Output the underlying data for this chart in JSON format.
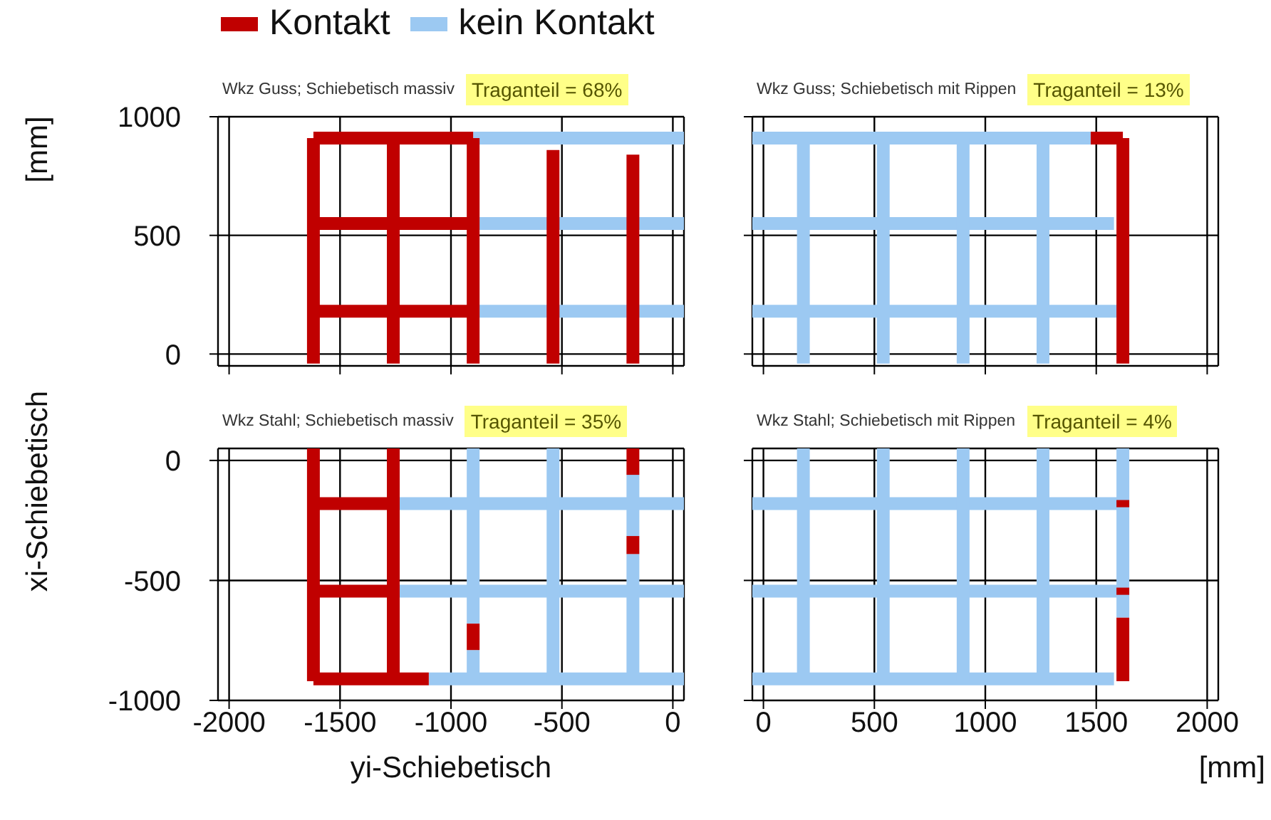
{
  "chart_data": [
    {
      "type": "line",
      "title": "Wkz Guss; Schiebetisch massiv",
      "annotations": [
        "Traganteil = 68%"
      ],
      "ylabel": "[mm]",
      "legend": "top",
      "grid": true,
      "tick_labels": "y",
      "xlim": [
        -2050,
        50
      ],
      "ylim": [
        -50,
        1000
      ],
      "xticks": [
        -2000,
        -1500,
        -1000,
        -500,
        0
      ],
      "yticks": [
        0,
        500,
        1000
      ],
      "series": [
        {
          "name": "kein Kontakt",
          "color": "#9cc9f2",
          "x": [
            -900,
            50
          ],
          "values": [
            910,
            910
          ]
        },
        {
          "color": "#9cc9f2",
          "x": [
            -900,
            50
          ],
          "values": [
            550,
            550
          ]
        },
        {
          "color": "#9cc9f2",
          "x": [
            -900,
            50
          ],
          "values": [
            180,
            180
          ]
        },
        {
          "name": "Kontakt",
          "color": "#c00000",
          "x": [
            -1620,
            -900
          ],
          "values": [
            910,
            910
          ]
        },
        {
          "color": "#c00000",
          "x": [
            -1620,
            -900
          ],
          "values": [
            550,
            550
          ]
        },
        {
          "color": "#c00000",
          "x": [
            -1620,
            -900
          ],
          "values": [
            180,
            180
          ]
        },
        {
          "color": "#c00000",
          "x": [
            -1620,
            -1620
          ],
          "values": [
            -40,
            910
          ]
        },
        {
          "color": "#c00000",
          "x": [
            -1260,
            -1260
          ],
          "values": [
            -40,
            910
          ]
        },
        {
          "color": "#c00000",
          "x": [
            -900,
            -900
          ],
          "values": [
            -40,
            910
          ]
        },
        {
          "color": "#c00000",
          "x": [
            -540,
            -540
          ],
          "values": [
            -40,
            860
          ]
        },
        {
          "color": "#c00000",
          "x": [
            -180,
            -180
          ],
          "values": [
            -40,
            840
          ]
        }
      ]
    },
    {
      "type": "line",
      "title": "Wkz Guss; Schiebetisch mit Rippen",
      "annotations": [
        "Traganteil = 13%"
      ],
      "grid": true,
      "tick_labels": false,
      "xlim": [
        -50,
        2050
      ],
      "ylim": [
        -50,
        1000
      ],
      "xticks": [
        0,
        500,
        1000,
        1500,
        2000
      ],
      "yticks": [
        0,
        500,
        1000
      ],
      "series": [
        {
          "color": "#9cc9f2",
          "x": [
            -50,
            1475
          ],
          "values": [
            910,
            910
          ]
        },
        {
          "color": "#9cc9f2",
          "x": [
            -50,
            1580
          ],
          "values": [
            550,
            550
          ]
        },
        {
          "color": "#9cc9f2",
          "x": [
            -50,
            1600
          ],
          "values": [
            180,
            180
          ]
        },
        {
          "color": "#9cc9f2",
          "x": [
            180,
            180
          ],
          "values": [
            -40,
            910
          ]
        },
        {
          "color": "#9cc9f2",
          "x": [
            540,
            540
          ],
          "values": [
            -40,
            910
          ]
        },
        {
          "color": "#9cc9f2",
          "x": [
            900,
            900
          ],
          "values": [
            -40,
            910
          ]
        },
        {
          "color": "#9cc9f2",
          "x": [
            1260,
            1260
          ],
          "values": [
            -40,
            910
          ]
        },
        {
          "color": "#c00000",
          "x": [
            1475,
            1620
          ],
          "values": [
            910,
            910
          ]
        },
        {
          "color": "#c00000",
          "x": [
            1620,
            1620
          ],
          "values": [
            -40,
            910
          ]
        }
      ]
    },
    {
      "type": "line",
      "title": "Wkz Stahl; Schiebetisch massiv",
      "annotations": [
        "Traganteil = 35%"
      ],
      "xlabel": "yi-Schiebetisch",
      "ylabel": "xi-Schiebetisch",
      "grid": true,
      "xlim": [
        -2050,
        50
      ],
      "ylim": [
        -1000,
        50
      ],
      "xticks": [
        -2000,
        -1500,
        -1000,
        -500,
        0
      ],
      "yticks": [
        -1000,
        -500,
        0
      ],
      "series": [
        {
          "color": "#9cc9f2",
          "x": [
            -1260,
            50
          ],
          "values": [
            -180,
            -180
          ]
        },
        {
          "color": "#9cc9f2",
          "x": [
            -1250,
            50
          ],
          "values": [
            -545,
            -545
          ]
        },
        {
          "color": "#9cc9f2",
          "x": [
            -1100,
            50
          ],
          "values": [
            -910,
            -910
          ]
        },
        {
          "color": "#9cc9f2",
          "x": [
            -900,
            -900
          ],
          "values": [
            50,
            -680
          ]
        },
        {
          "color": "#9cc9f2",
          "x": [
            -900,
            -900
          ],
          "values": [
            -790,
            -920
          ]
        },
        {
          "color": "#9cc9f2",
          "x": [
            -540,
            -540
          ],
          "values": [
            50,
            -920
          ]
        },
        {
          "color": "#9cc9f2",
          "x": [
            -180,
            -180
          ],
          "values": [
            -60,
            -315
          ]
        },
        {
          "color": "#9cc9f2",
          "x": [
            -180,
            -180
          ],
          "values": [
            -390,
            -920
          ]
        },
        {
          "color": "#c00000",
          "x": [
            -1620,
            -1620
          ],
          "values": [
            50,
            -920
          ]
        },
        {
          "color": "#c00000",
          "x": [
            -1260,
            -1260
          ],
          "values": [
            50,
            -920
          ]
        },
        {
          "color": "#c00000",
          "x": [
            -900,
            -900
          ],
          "values": [
            -680,
            -790
          ]
        },
        {
          "color": "#c00000",
          "x": [
            -180,
            -180
          ],
          "values": [
            50,
            -60
          ]
        },
        {
          "color": "#c00000",
          "x": [
            -180,
            -180
          ],
          "values": [
            -315,
            -390
          ]
        },
        {
          "color": "#c00000",
          "x": [
            -1620,
            -1260
          ],
          "values": [
            -180,
            -180
          ]
        },
        {
          "color": "#c00000",
          "x": [
            -1620,
            -1250
          ],
          "values": [
            -545,
            -545
          ]
        },
        {
          "color": "#c00000",
          "x": [
            -1620,
            -1100
          ],
          "values": [
            -910,
            -910
          ]
        }
      ]
    },
    {
      "type": "line",
      "title": "Wkz Stahl; Schiebetisch mit Rippen",
      "annotations": [
        "Traganteil = 4%"
      ],
      "xlabel": "[mm]",
      "grid": true,
      "tick_labels": "x",
      "xlim": [
        -50,
        2050
      ],
      "ylim": [
        -1000,
        50
      ],
      "xticks": [
        0,
        500,
        1000,
        1500,
        2000
      ],
      "yticks": [
        -1000,
        -500,
        0
      ],
      "series": [
        {
          "color": "#9cc9f2",
          "x": [
            -50,
            1620
          ],
          "values": [
            -180,
            -180
          ]
        },
        {
          "color": "#9cc9f2",
          "x": [
            -50,
            1620
          ],
          "values": [
            -545,
            -545
          ]
        },
        {
          "color": "#9cc9f2",
          "x": [
            -50,
            1580
          ],
          "values": [
            -910,
            -910
          ]
        },
        {
          "color": "#9cc9f2",
          "x": [
            180,
            180
          ],
          "values": [
            50,
            -920
          ]
        },
        {
          "color": "#9cc9f2",
          "x": [
            540,
            540
          ],
          "values": [
            50,
            -920
          ]
        },
        {
          "color": "#9cc9f2",
          "x": [
            900,
            900
          ],
          "values": [
            50,
            -920
          ]
        },
        {
          "color": "#9cc9f2",
          "x": [
            1260,
            1260
          ],
          "values": [
            50,
            -920
          ]
        },
        {
          "color": "#9cc9f2",
          "x": [
            1620,
            1620
          ],
          "values": [
            50,
            -655
          ]
        },
        {
          "color": "#c00000",
          "x": [
            1620,
            1620
          ],
          "values": [
            -655,
            -920
          ]
        },
        {
          "color": "#c00000",
          "x": [
            1620,
            1620
          ],
          "values": [
            -165,
            -195
          ]
        },
        {
          "color": "#c00000",
          "x": [
            1620,
            1620
          ],
          "values": [
            -530,
            -560
          ]
        }
      ]
    }
  ]
}
